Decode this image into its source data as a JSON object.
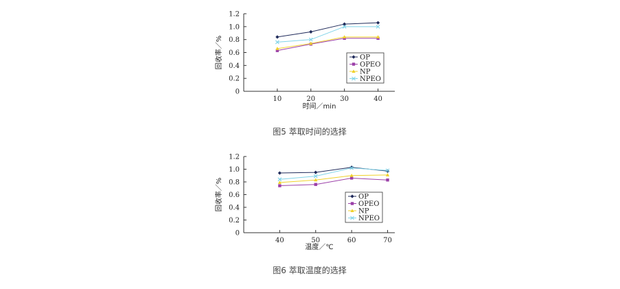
{
  "colors": {
    "OP": "#1f2a5a",
    "OPEO": "#9b3fa8",
    "NP": "#f0d12a",
    "NPEO": "#7fd3e8"
  },
  "chart_data": [
    {
      "type": "line",
      "caption": "图5 萃取时间的选择",
      "xlabel": "时间／min",
      "ylabel": "回收率／%",
      "x": [
        10,
        20,
        30,
        40
      ],
      "xlim": [
        0,
        45
      ],
      "ylim": [
        0,
        1.2
      ],
      "yticks": [
        "0",
        "0.2",
        "0.4",
        "0.6",
        "0.8",
        "1.0",
        "1.2"
      ],
      "xticks": [
        "10",
        "20",
        "30",
        "40"
      ],
      "legend_position": "bottom-right",
      "series": [
        {
          "name": "OP",
          "values": [
            0.84,
            0.92,
            1.04,
            1.06
          ],
          "marker": "diamond"
        },
        {
          "name": "OPEO",
          "values": [
            0.63,
            0.73,
            0.82,
            0.82
          ],
          "marker": "square"
        },
        {
          "name": "NP",
          "values": [
            0.66,
            0.74,
            0.84,
            0.84
          ],
          "marker": "triangle"
        },
        {
          "name": "NPEO",
          "values": [
            0.76,
            0.8,
            1.0,
            1.0
          ],
          "marker": "cross"
        }
      ]
    },
    {
      "type": "line",
      "caption": "图6 萃取温度的选择",
      "xlabel": "温度／℃",
      "ylabel": "回收率／%",
      "x": [
        40,
        50,
        60,
        70
      ],
      "xlim": [
        30,
        72
      ],
      "ylim": [
        0,
        1.2
      ],
      "yticks": [
        "0",
        "0.2",
        "0.4",
        "0.6",
        "0.8",
        "1.0",
        "1.2"
      ],
      "xticks": [
        "40",
        "50",
        "60",
        "70"
      ],
      "legend_position": "bottom-right",
      "series": [
        {
          "name": "OP",
          "values": [
            0.94,
            0.95,
            1.03,
            0.97
          ],
          "marker": "diamond"
        },
        {
          "name": "OPEO",
          "values": [
            0.74,
            0.76,
            0.86,
            0.83
          ],
          "marker": "square"
        },
        {
          "name": "NP",
          "values": [
            0.79,
            0.83,
            0.9,
            0.91
          ],
          "marker": "triangle"
        },
        {
          "name": "NPEO",
          "values": [
            0.84,
            0.89,
            1.02,
            0.98
          ],
          "marker": "cross"
        }
      ]
    }
  ]
}
